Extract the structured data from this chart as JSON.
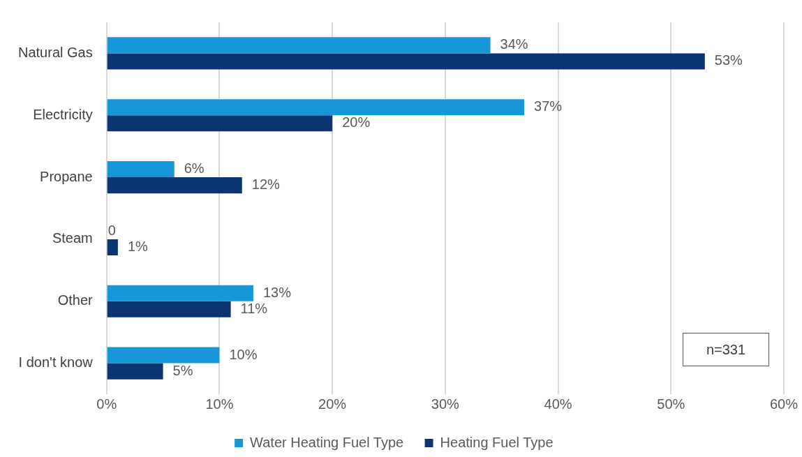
{
  "chart_data": {
    "type": "bar",
    "orientation": "horizontal",
    "categories": [
      "Natural Gas",
      "Electricity",
      "Propane",
      "Steam",
      "Other",
      "I don't know"
    ],
    "series": [
      {
        "name": "Water Heating Fuel Type",
        "color": "#1796da",
        "values": [
          34,
          37,
          6,
          0,
          13,
          10
        ],
        "value_labels": [
          "34%",
          "37%",
          "6%",
          "0",
          "13%",
          "10%"
        ]
      },
      {
        "name": "Heating Fuel Type",
        "color": "#0b3470",
        "values": [
          53,
          20,
          12,
          1,
          11,
          5
        ],
        "value_labels": [
          "53%",
          "20%",
          "12%",
          "1%",
          "11%",
          "5%"
        ]
      }
    ],
    "xlim": [
      0,
      60
    ],
    "xticks": [
      {
        "value": 0,
        "label": "0%"
      },
      {
        "value": 10,
        "label": "10%"
      },
      {
        "value": 20,
        "label": "20%"
      },
      {
        "value": 30,
        "label": "30%"
      },
      {
        "value": 40,
        "label": "40%"
      },
      {
        "value": 50,
        "label": "50%"
      },
      {
        "value": 60,
        "label": "60%"
      }
    ],
    "grid": "x",
    "legend": "bottom",
    "annotations": [
      "n=331"
    ]
  }
}
